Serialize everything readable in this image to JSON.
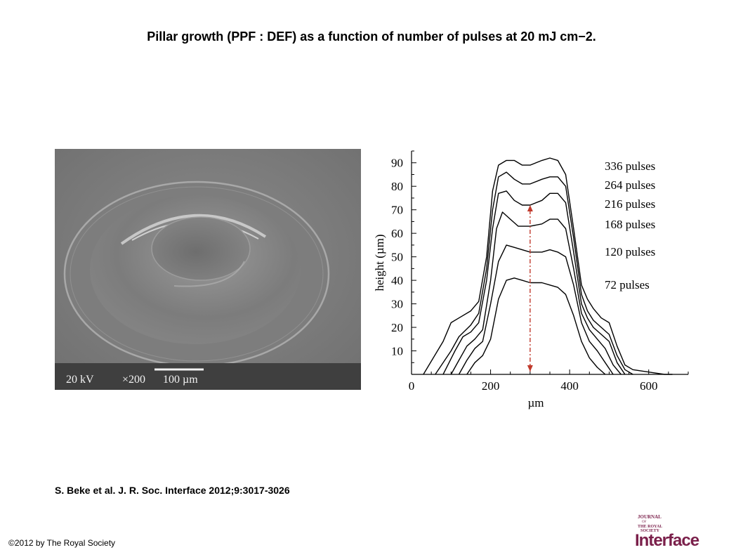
{
  "slide": {
    "title": "Pillar growth (PPF : DEF) as a function of number of pulses at 20 mJ cm−2.",
    "citation": "S. Beke et al. J. R. Soc. Interface 2012;9:3017-3026",
    "copyright": "©2012 by The Royal Society"
  },
  "sem_image": {
    "voltage_label": "20 kV",
    "magnification_label": "×200",
    "scale_bar_label": "100 µm"
  },
  "logo": {
    "line1": "JOURNAL",
    "line2": "OF",
    "line3": "THE ROYAL",
    "line4": "SOCIETY",
    "word": "Interface",
    "color": "#7a1f4a"
  },
  "chart_data": {
    "type": "line",
    "xlabel": "µm",
    "ylabel": "height (µm)",
    "xlim": [
      0,
      700
    ],
    "ylim": [
      0,
      95
    ],
    "xticks": [
      0,
      200,
      400,
      600
    ],
    "yticks": [
      10,
      20,
      30,
      40,
      50,
      60,
      70,
      80,
      90
    ],
    "grid": false,
    "series": [
      {
        "name": "336 pulses",
        "x": [
          30,
          80,
          100,
          120,
          150,
          170,
          190,
          205,
          220,
          240,
          260,
          280,
          300,
          330,
          350,
          370,
          390,
          410,
          430,
          445,
          460,
          480,
          500,
          520,
          540,
          560,
          600,
          640,
          660
        ],
        "y": [
          0,
          14,
          22,
          24,
          27,
          31,
          50,
          78,
          89,
          91,
          91,
          89,
          89,
          91,
          92,
          91,
          85,
          62,
          38,
          32,
          28,
          24,
          22,
          12,
          4,
          2,
          1,
          0,
          0
        ]
      },
      {
        "name": "264 pulses",
        "x": [
          60,
          100,
          120,
          150,
          170,
          190,
          205,
          220,
          240,
          260,
          280,
          300,
          330,
          350,
          370,
          390,
          410,
          430,
          445,
          460,
          480,
          500,
          520,
          540,
          560
        ],
        "y": [
          0,
          10,
          16,
          21,
          26,
          45,
          70,
          84,
          86,
          83,
          81,
          81,
          83,
          84,
          84,
          80,
          58,
          34,
          27,
          23,
          20,
          17,
          8,
          2,
          0
        ]
      },
      {
        "name": "216 pulses",
        "x": [
          80,
          110,
          130,
          150,
          170,
          190,
          205,
          220,
          240,
          260,
          280,
          300,
          330,
          350,
          370,
          390,
          410,
          430,
          445,
          460,
          480,
          500,
          520,
          540
        ],
        "y": [
          0,
          10,
          16,
          18,
          22,
          40,
          62,
          77,
          78,
          74,
          72,
          72,
          74,
          77,
          77,
          73,
          52,
          30,
          24,
          20,
          17,
          14,
          5,
          0
        ]
      },
      {
        "name": "168 pulses",
        "x": [
          100,
          120,
          140,
          160,
          180,
          200,
          215,
          230,
          250,
          270,
          300,
          330,
          350,
          370,
          390,
          410,
          430,
          450,
          470,
          490,
          510,
          530
        ],
        "y": [
          0,
          6,
          12,
          15,
          19,
          40,
          62,
          69,
          66,
          63,
          63,
          64,
          66,
          66,
          62,
          45,
          26,
          19,
          15,
          11,
          4,
          0
        ]
      },
      {
        "name": "120 pulses",
        "x": [
          120,
          140,
          160,
          180,
          200,
          220,
          240,
          260,
          280,
          300,
          330,
          350,
          370,
          390,
          410,
          430,
          450,
          470,
          490,
          510
        ],
        "y": [
          0,
          6,
          11,
          14,
          30,
          48,
          55,
          54,
          53,
          52,
          52,
          53,
          52,
          50,
          38,
          22,
          14,
          10,
          5,
          0
        ]
      },
      {
        "name": "72 pulses",
        "x": [
          140,
          160,
          180,
          200,
          220,
          240,
          260,
          280,
          300,
          330,
          350,
          370,
          390,
          410,
          430,
          450,
          470,
          490
        ],
        "y": [
          0,
          5,
          8,
          15,
          32,
          40,
          41,
          40,
          39,
          39,
          38,
          37,
          34,
          25,
          14,
          7,
          3,
          0
        ]
      }
    ],
    "annotation": {
      "type": "double-arrow",
      "x": 300,
      "y_from": 0,
      "y_to": 72,
      "color": "#c0392b"
    }
  }
}
